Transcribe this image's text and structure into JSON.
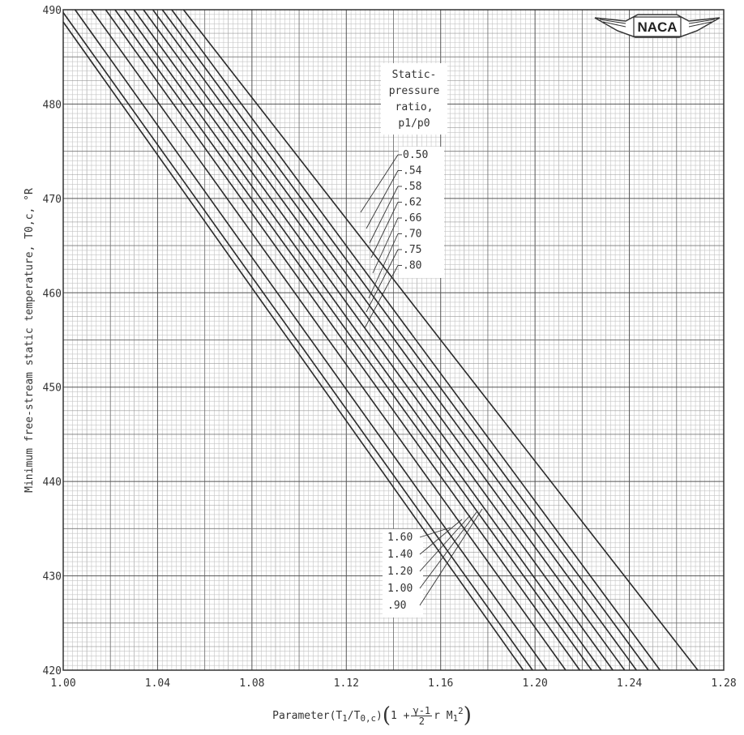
{
  "chart_data": {
    "type": "line",
    "xlabel": "Parameter (T1/T0,c)(1 + (γ-1)/2 r M1²)",
    "ylabel": "Minimum free-stream static temperature, T0,c, °R",
    "xlim": [
      1.0,
      1.28
    ],
    "ylim": [
      420,
      490
    ],
    "x_ticks": [
      "1.00",
      "1.04",
      "1.08",
      "1.12",
      "1.16",
      "1.20",
      "1.24",
      "1.28"
    ],
    "y_ticks": [
      "420",
      "430",
      "440",
      "450",
      "460",
      "470",
      "480",
      "490"
    ],
    "grid": true,
    "legend_title": [
      "Static-",
      "pressure",
      "ratio,",
      "p1/p0"
    ],
    "legend_upper": [
      ".80",
      ".75",
      ".70",
      ".66",
      ".62",
      ".58",
      ".54",
      "0.50"
    ],
    "legend_lower": [
      "1.60",
      "1.40",
      "1.20",
      "1.00",
      ".90"
    ],
    "series": [
      {
        "name": "1.60",
        "points": [
          [
            1.0,
            488.7
          ],
          [
            1.195,
            420
          ]
        ]
      },
      {
        "name": "1.40",
        "points": [
          [
            1.0,
            489.7
          ],
          [
            1.199,
            420
          ]
        ]
      },
      {
        "name": "1.20",
        "points": [
          [
            1.005,
            490
          ],
          [
            1.205,
            420
          ]
        ]
      },
      {
        "name": "1.00",
        "points": [
          [
            1.012,
            490
          ],
          [
            1.213,
            420
          ]
        ]
      },
      {
        "name": ".90",
        "points": [
          [
            1.018,
            490
          ],
          [
            1.219,
            420
          ]
        ]
      },
      {
        "name": ".80",
        "points": [
          [
            1.022,
            490
          ],
          [
            1.224,
            420
          ]
        ]
      },
      {
        "name": ".75",
        "points": [
          [
            1.026,
            490
          ],
          [
            1.228,
            420
          ]
        ]
      },
      {
        "name": ".70",
        "points": [
          [
            1.03,
            490
          ],
          [
            1.233,
            420
          ]
        ]
      },
      {
        "name": ".66",
        "points": [
          [
            1.034,
            490
          ],
          [
            1.238,
            420
          ]
        ]
      },
      {
        "name": ".62",
        "points": [
          [
            1.038,
            490
          ],
          [
            1.243,
            420
          ]
        ]
      },
      {
        "name": ".58",
        "points": [
          [
            1.042,
            490
          ],
          [
            1.248,
            420
          ]
        ]
      },
      {
        "name": ".54",
        "points": [
          [
            1.046,
            490
          ],
          [
            1.253,
            420
          ]
        ]
      },
      {
        "name": "0.50",
        "points": [
          [
            1.051,
            490
          ],
          [
            1.269,
            420
          ]
        ]
      }
    ]
  },
  "logo": {
    "text": "NACA"
  },
  "xlabel_parts": {
    "prefix": "Parameter ",
    "ratio": "(T",
    "sub1": "1",
    "slash": "/T",
    "sub0c": "0,c",
    "close": ")",
    "one_plus": "1 + ",
    "frac_num": "γ-1",
    "frac_den": "2",
    "tail": " r M",
    "sub_m": "1",
    "sup_m": "2"
  }
}
